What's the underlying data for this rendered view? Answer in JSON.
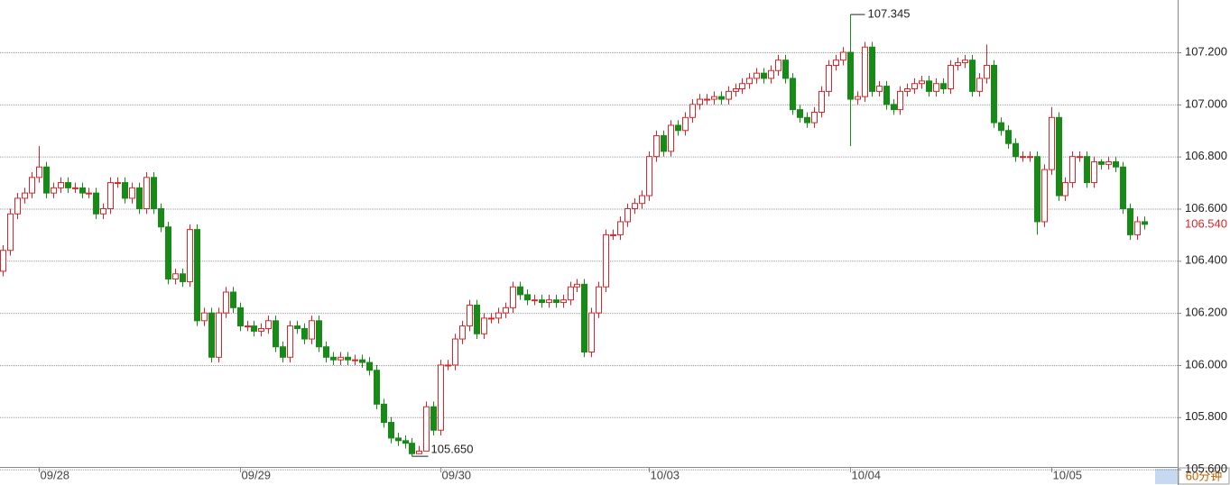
{
  "chart_data": {
    "type": "candlestick",
    "up_color": "#d9252a",
    "down_color": "#178a17",
    "ylim": [
      105.6,
      107.4
    ],
    "yticks": [
      {
        "value": 105.6,
        "label": "105.600"
      },
      {
        "value": 105.8,
        "label": "105.800"
      },
      {
        "value": 106.0,
        "label": "106.000"
      },
      {
        "value": 106.2,
        "label": "106.200"
      },
      {
        "value": 106.4,
        "label": "106.400"
      },
      {
        "value": 106.6,
        "label": "106.600"
      },
      {
        "value": 106.8,
        "label": "106.800"
      },
      {
        "value": 107.0,
        "label": "107.000"
      },
      {
        "value": 107.2,
        "label": "107.200"
      }
    ],
    "grid": true,
    "period": "60分钟",
    "last_price": {
      "value": 106.54,
      "label": "106.540"
    },
    "high_annotation": {
      "value": 107.345,
      "label": "107.345"
    },
    "low_annotation": {
      "value": 105.65,
      "label": "105.650"
    },
    "categories": [
      null,
      null,
      null,
      null,
      null,
      "09/28",
      null,
      null,
      null,
      null,
      null,
      null,
      null,
      null,
      null,
      null,
      null,
      null,
      null,
      null,
      null,
      null,
      null,
      null,
      null,
      null,
      null,
      null,
      null,
      null,
      null,
      null,
      null,
      "09/29",
      null,
      null,
      null,
      null,
      null,
      null,
      null,
      null,
      null,
      null,
      null,
      null,
      null,
      null,
      null,
      null,
      null,
      null,
      null,
      null,
      null,
      null,
      null,
      null,
      null,
      null,
      null,
      "09/30",
      null,
      null,
      null,
      null,
      null,
      null,
      null,
      null,
      null,
      null,
      null,
      null,
      null,
      null,
      null,
      null,
      null,
      null,
      null,
      null,
      null,
      null,
      null,
      null,
      null,
      null,
      null,
      null,
      "10/03",
      null,
      null,
      null,
      null,
      null,
      null,
      null,
      null,
      null,
      null,
      null,
      null,
      null,
      null,
      null,
      null,
      null,
      null,
      null,
      null,
      null,
      null,
      null,
      null,
      null,
      null,
      null,
      "10/04",
      null,
      null,
      null,
      null,
      null,
      null,
      null,
      null,
      null,
      null,
      null,
      null,
      null,
      null,
      null,
      null,
      null,
      null,
      null,
      null,
      null,
      null,
      null,
      null,
      null,
      null,
      null,
      "10/05",
      null,
      null,
      null,
      null,
      null,
      null,
      null,
      null,
      null,
      null,
      null,
      null,
      null
    ],
    "open": [
      106.36,
      106.44,
      106.58,
      106.64,
      106.66,
      106.72,
      106.76,
      106.66,
      106.68,
      106.7,
      106.68,
      106.68,
      106.66,
      106.66,
      106.58,
      106.6,
      106.7,
      106.7,
      106.64,
      106.68,
      106.6,
      106.72,
      106.6,
      106.53,
      106.33,
      106.35,
      106.32,
      106.52,
      106.17,
      106.2,
      106.03,
      106.2,
      106.28,
      106.22,
      106.15,
      106.15,
      106.13,
      106.14,
      106.17,
      106.07,
      106.03,
      106.15,
      106.14,
      106.1,
      106.17,
      106.07,
      106.03,
      106.02,
      106.03,
      106.02,
      106.02,
      106.01,
      105.98,
      105.85,
      105.78,
      105.72,
      105.71,
      105.7,
      105.66,
      105.67,
      105.84,
      105.75,
      106.0,
      106.0,
      106.1,
      106.15,
      106.23,
      106.12,
      106.18,
      106.18,
      106.2,
      106.22,
      106.3,
      106.27,
      106.25,
      106.25,
      106.24,
      106.25,
      106.24,
      106.25,
      106.3,
      106.31,
      106.05,
      106.2,
      106.3,
      106.5,
      106.5,
      106.55,
      106.6,
      106.62,
      106.65,
      106.8,
      106.88,
      106.82,
      106.92,
      106.9,
      106.95,
      107.0,
      107.02,
      107.02,
      107.03,
      107.02,
      107.05,
      107.06,
      107.08,
      107.1,
      107.12,
      107.1,
      107.13,
      107.17,
      107.1,
      106.98,
      106.95,
      106.93,
      106.97,
      107.05,
      107.15,
      107.17,
      107.2,
      107.02,
      107.03,
      107.22,
      107.05,
      107.07,
      107.0,
      106.98,
      107.05,
      107.06,
      107.08,
      107.09,
      107.05,
      107.08,
      107.06,
      107.15,
      107.16,
      107.17,
      107.05,
      107.1,
      107.15,
      106.93,
      106.9,
      106.85,
      106.8,
      106.8,
      106.8,
      106.55,
      106.75,
      106.95,
      106.65,
      106.7,
      106.8,
      106.8,
      106.7,
      106.78,
      106.77,
      106.78,
      106.76,
      106.6,
      106.5,
      106.55
    ],
    "high": [
      106.46,
      106.6,
      106.66,
      106.68,
      106.74,
      106.84,
      106.78,
      106.7,
      106.72,
      106.72,
      106.7,
      106.7,
      106.68,
      106.68,
      106.62,
      106.72,
      106.72,
      106.72,
      106.7,
      106.7,
      106.74,
      106.74,
      106.62,
      106.55,
      106.37,
      106.37,
      106.54,
      106.54,
      106.22,
      106.22,
      106.22,
      106.3,
      106.3,
      106.24,
      106.17,
      106.17,
      106.16,
      106.19,
      106.19,
      106.09,
      106.17,
      106.17,
      106.16,
      106.19,
      106.19,
      106.09,
      106.05,
      106.05,
      106.05,
      106.04,
      106.04,
      106.03,
      106.0,
      105.87,
      105.8,
      105.74,
      105.73,
      105.72,
      105.69,
      105.86,
      105.86,
      106.02,
      106.02,
      106.12,
      106.17,
      106.25,
      106.25,
      106.2,
      106.2,
      106.22,
      106.24,
      106.32,
      106.32,
      106.29,
      106.27,
      106.27,
      106.27,
      106.27,
      106.27,
      106.32,
      106.33,
      106.33,
      106.22,
      106.32,
      106.52,
      106.52,
      106.57,
      106.62,
      106.64,
      106.67,
      106.82,
      106.9,
      106.9,
      106.94,
      106.94,
      106.97,
      107.02,
      107.04,
      107.04,
      107.05,
      107.05,
      107.07,
      107.08,
      107.1,
      107.12,
      107.14,
      107.14,
      107.15,
      107.19,
      107.19,
      107.12,
      107.0,
      106.97,
      106.99,
      107.07,
      107.17,
      107.19,
      107.22,
      107.345,
      107.05,
      107.24,
      107.24,
      107.09,
      107.09,
      107.02,
      107.07,
      107.08,
      107.1,
      107.11,
      107.11,
      107.1,
      107.1,
      107.17,
      107.18,
      107.19,
      107.19,
      107.12,
      107.23,
      107.17,
      106.95,
      106.92,
      106.87,
      106.82,
      106.82,
      106.82,
      106.77,
      106.99,
      106.97,
      106.72,
      106.82,
      106.82,
      106.82,
      106.8,
      106.79,
      106.8,
      106.8,
      106.78,
      106.62,
      106.57,
      106.57
    ],
    "low": [
      106.34,
      106.42,
      106.56,
      106.62,
      106.64,
      106.7,
      106.64,
      106.64,
      106.66,
      106.66,
      106.66,
      106.64,
      106.64,
      106.56,
      106.56,
      106.58,
      106.68,
      106.62,
      106.62,
      106.58,
      106.58,
      106.58,
      106.51,
      106.31,
      106.31,
      106.3,
      106.3,
      106.15,
      106.15,
      106.01,
      106.01,
      106.18,
      106.2,
      106.13,
      106.13,
      106.11,
      106.11,
      106.12,
      106.05,
      106.01,
      106.01,
      106.12,
      106.08,
      106.08,
      106.05,
      106.01,
      106.0,
      106.0,
      106.0,
      106.0,
      105.99,
      105.96,
      105.83,
      105.76,
      105.7,
      105.69,
      105.68,
      105.65,
      105.66,
      105.67,
      105.73,
      105.73,
      105.98,
      105.98,
      106.08,
      106.13,
      106.1,
      106.1,
      106.16,
      106.16,
      106.18,
      106.2,
      106.25,
      106.23,
      106.23,
      106.22,
      106.22,
      106.22,
      106.22,
      106.23,
      106.28,
      106.03,
      106.03,
      106.18,
      106.28,
      106.48,
      106.48,
      106.53,
      106.58,
      106.6,
      106.63,
      106.78,
      106.8,
      106.8,
      106.88,
      106.88,
      106.93,
      106.98,
      107.0,
      107.0,
      107.0,
      107.0,
      107.03,
      107.04,
      107.06,
      107.08,
      107.08,
      107.08,
      107.11,
      107.08,
      106.96,
      106.93,
      106.91,
      106.91,
      106.95,
      107.03,
      107.13,
      107.15,
      106.84,
      107.0,
      107.01,
      107.03,
      107.03,
      106.98,
      106.96,
      106.96,
      107.03,
      107.04,
      107.06,
      107.03,
      107.03,
      107.04,
      107.04,
      107.13,
      107.14,
      107.03,
      107.03,
      107.08,
      106.91,
      106.88,
      106.83,
      106.78,
      106.78,
      106.78,
      106.5,
      106.53,
      106.73,
      106.63,
      106.63,
      106.68,
      106.78,
      106.68,
      106.68,
      106.75,
      106.75,
      106.74,
      106.58,
      106.48,
      106.48,
      106.52
    ],
    "close": [
      106.44,
      106.58,
      106.64,
      106.66,
      106.72,
      106.76,
      106.66,
      106.68,
      106.7,
      106.68,
      106.68,
      106.66,
      106.66,
      106.58,
      106.6,
      106.7,
      106.7,
      106.64,
      106.68,
      106.6,
      106.72,
      106.6,
      106.53,
      106.33,
      106.35,
      106.32,
      106.52,
      106.17,
      106.2,
      106.03,
      106.2,
      106.28,
      106.22,
      106.15,
      106.15,
      106.13,
      106.14,
      106.17,
      106.07,
      106.03,
      106.15,
      106.14,
      106.1,
      106.17,
      106.07,
      106.03,
      106.02,
      106.03,
      106.02,
      106.02,
      106.01,
      105.98,
      105.85,
      105.78,
      105.72,
      105.71,
      105.7,
      105.66,
      105.67,
      105.84,
      105.75,
      106.0,
      106.0,
      106.1,
      106.15,
      106.23,
      106.12,
      106.18,
      106.18,
      106.2,
      106.22,
      106.3,
      106.27,
      106.25,
      106.25,
      106.24,
      106.25,
      106.24,
      106.25,
      106.3,
      106.31,
      106.05,
      106.2,
      106.3,
      106.5,
      106.5,
      106.55,
      106.6,
      106.62,
      106.65,
      106.8,
      106.88,
      106.82,
      106.92,
      106.9,
      106.95,
      107.0,
      107.02,
      107.02,
      107.03,
      107.02,
      107.05,
      107.06,
      107.08,
      107.1,
      107.12,
      107.1,
      107.13,
      107.17,
      107.1,
      106.98,
      106.95,
      106.93,
      106.97,
      107.05,
      107.15,
      107.17,
      107.2,
      107.02,
      107.03,
      107.22,
      107.05,
      107.07,
      107.0,
      106.98,
      107.05,
      107.06,
      107.08,
      107.09,
      107.05,
      107.08,
      107.06,
      107.15,
      107.16,
      107.17,
      107.05,
      107.1,
      107.15,
      106.93,
      106.9,
      106.85,
      106.8,
      106.8,
      106.8,
      106.55,
      106.75,
      106.95,
      106.65,
      106.7,
      106.8,
      106.8,
      106.7,
      106.78,
      106.77,
      106.78,
      106.76,
      106.6,
      106.5,
      106.55,
      106.54
    ]
  }
}
